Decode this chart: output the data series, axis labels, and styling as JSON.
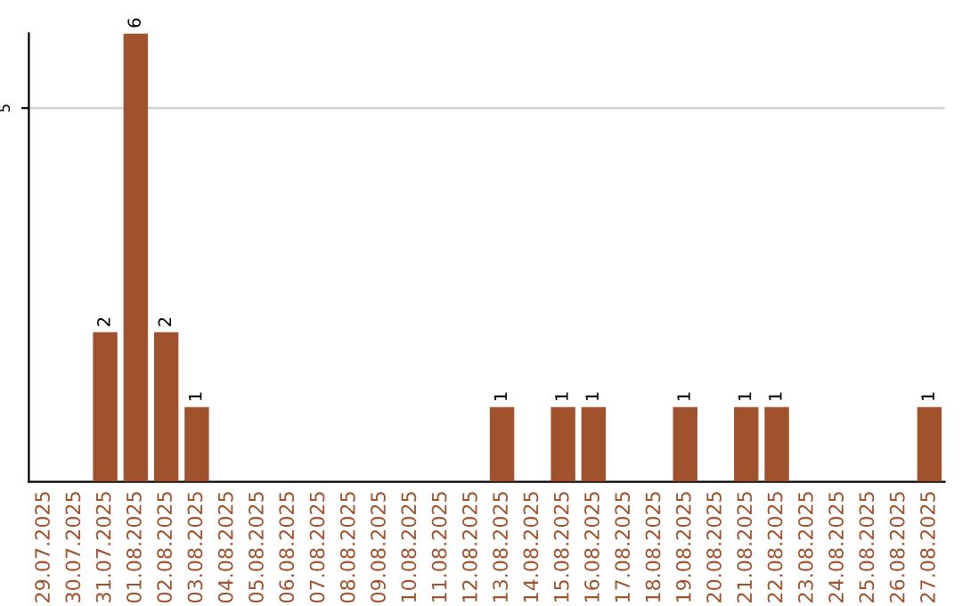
{
  "chart_data": {
    "type": "bar",
    "categories": [
      "29.07.2025",
      "30.07.2025",
      "31.07.2025",
      "01.08.2025",
      "02.08.2025",
      "03.08.2025",
      "04.08.2025",
      "05.08.2025",
      "06.08.2025",
      "07.08.2025",
      "08.08.2025",
      "09.08.2025",
      "10.08.2025",
      "11.08.2025",
      "12.08.2025",
      "13.08.2025",
      "14.08.2025",
      "15.08.2025",
      "16.08.2025",
      "17.08.2025",
      "18.08.2025",
      "19.08.2025",
      "20.08.2025",
      "21.08.2025",
      "22.08.2025",
      "23.08.2025",
      "24.08.2025",
      "25.08.2025",
      "26.08.2025",
      "27.08.2025"
    ],
    "values": [
      0,
      0,
      2,
      6,
      2,
      1,
      0,
      0,
      0,
      0,
      0,
      0,
      0,
      0,
      0,
      1,
      0,
      1,
      1,
      0,
      0,
      1,
      0,
      1,
      1,
      0,
      0,
      0,
      0,
      1
    ],
    "value_labels": [
      null,
      null,
      "2",
      "6",
      "2",
      "1",
      null,
      null,
      null,
      null,
      null,
      null,
      null,
      null,
      null,
      "1",
      null,
      "1",
      "1",
      null,
      null,
      "1",
      null,
      "1",
      "1",
      null,
      null,
      null,
      null,
      "1"
    ],
    "color": "#a0522d",
    "ylim": [
      0,
      6
    ],
    "yticks": [
      5
    ],
    "grid": "y"
  }
}
